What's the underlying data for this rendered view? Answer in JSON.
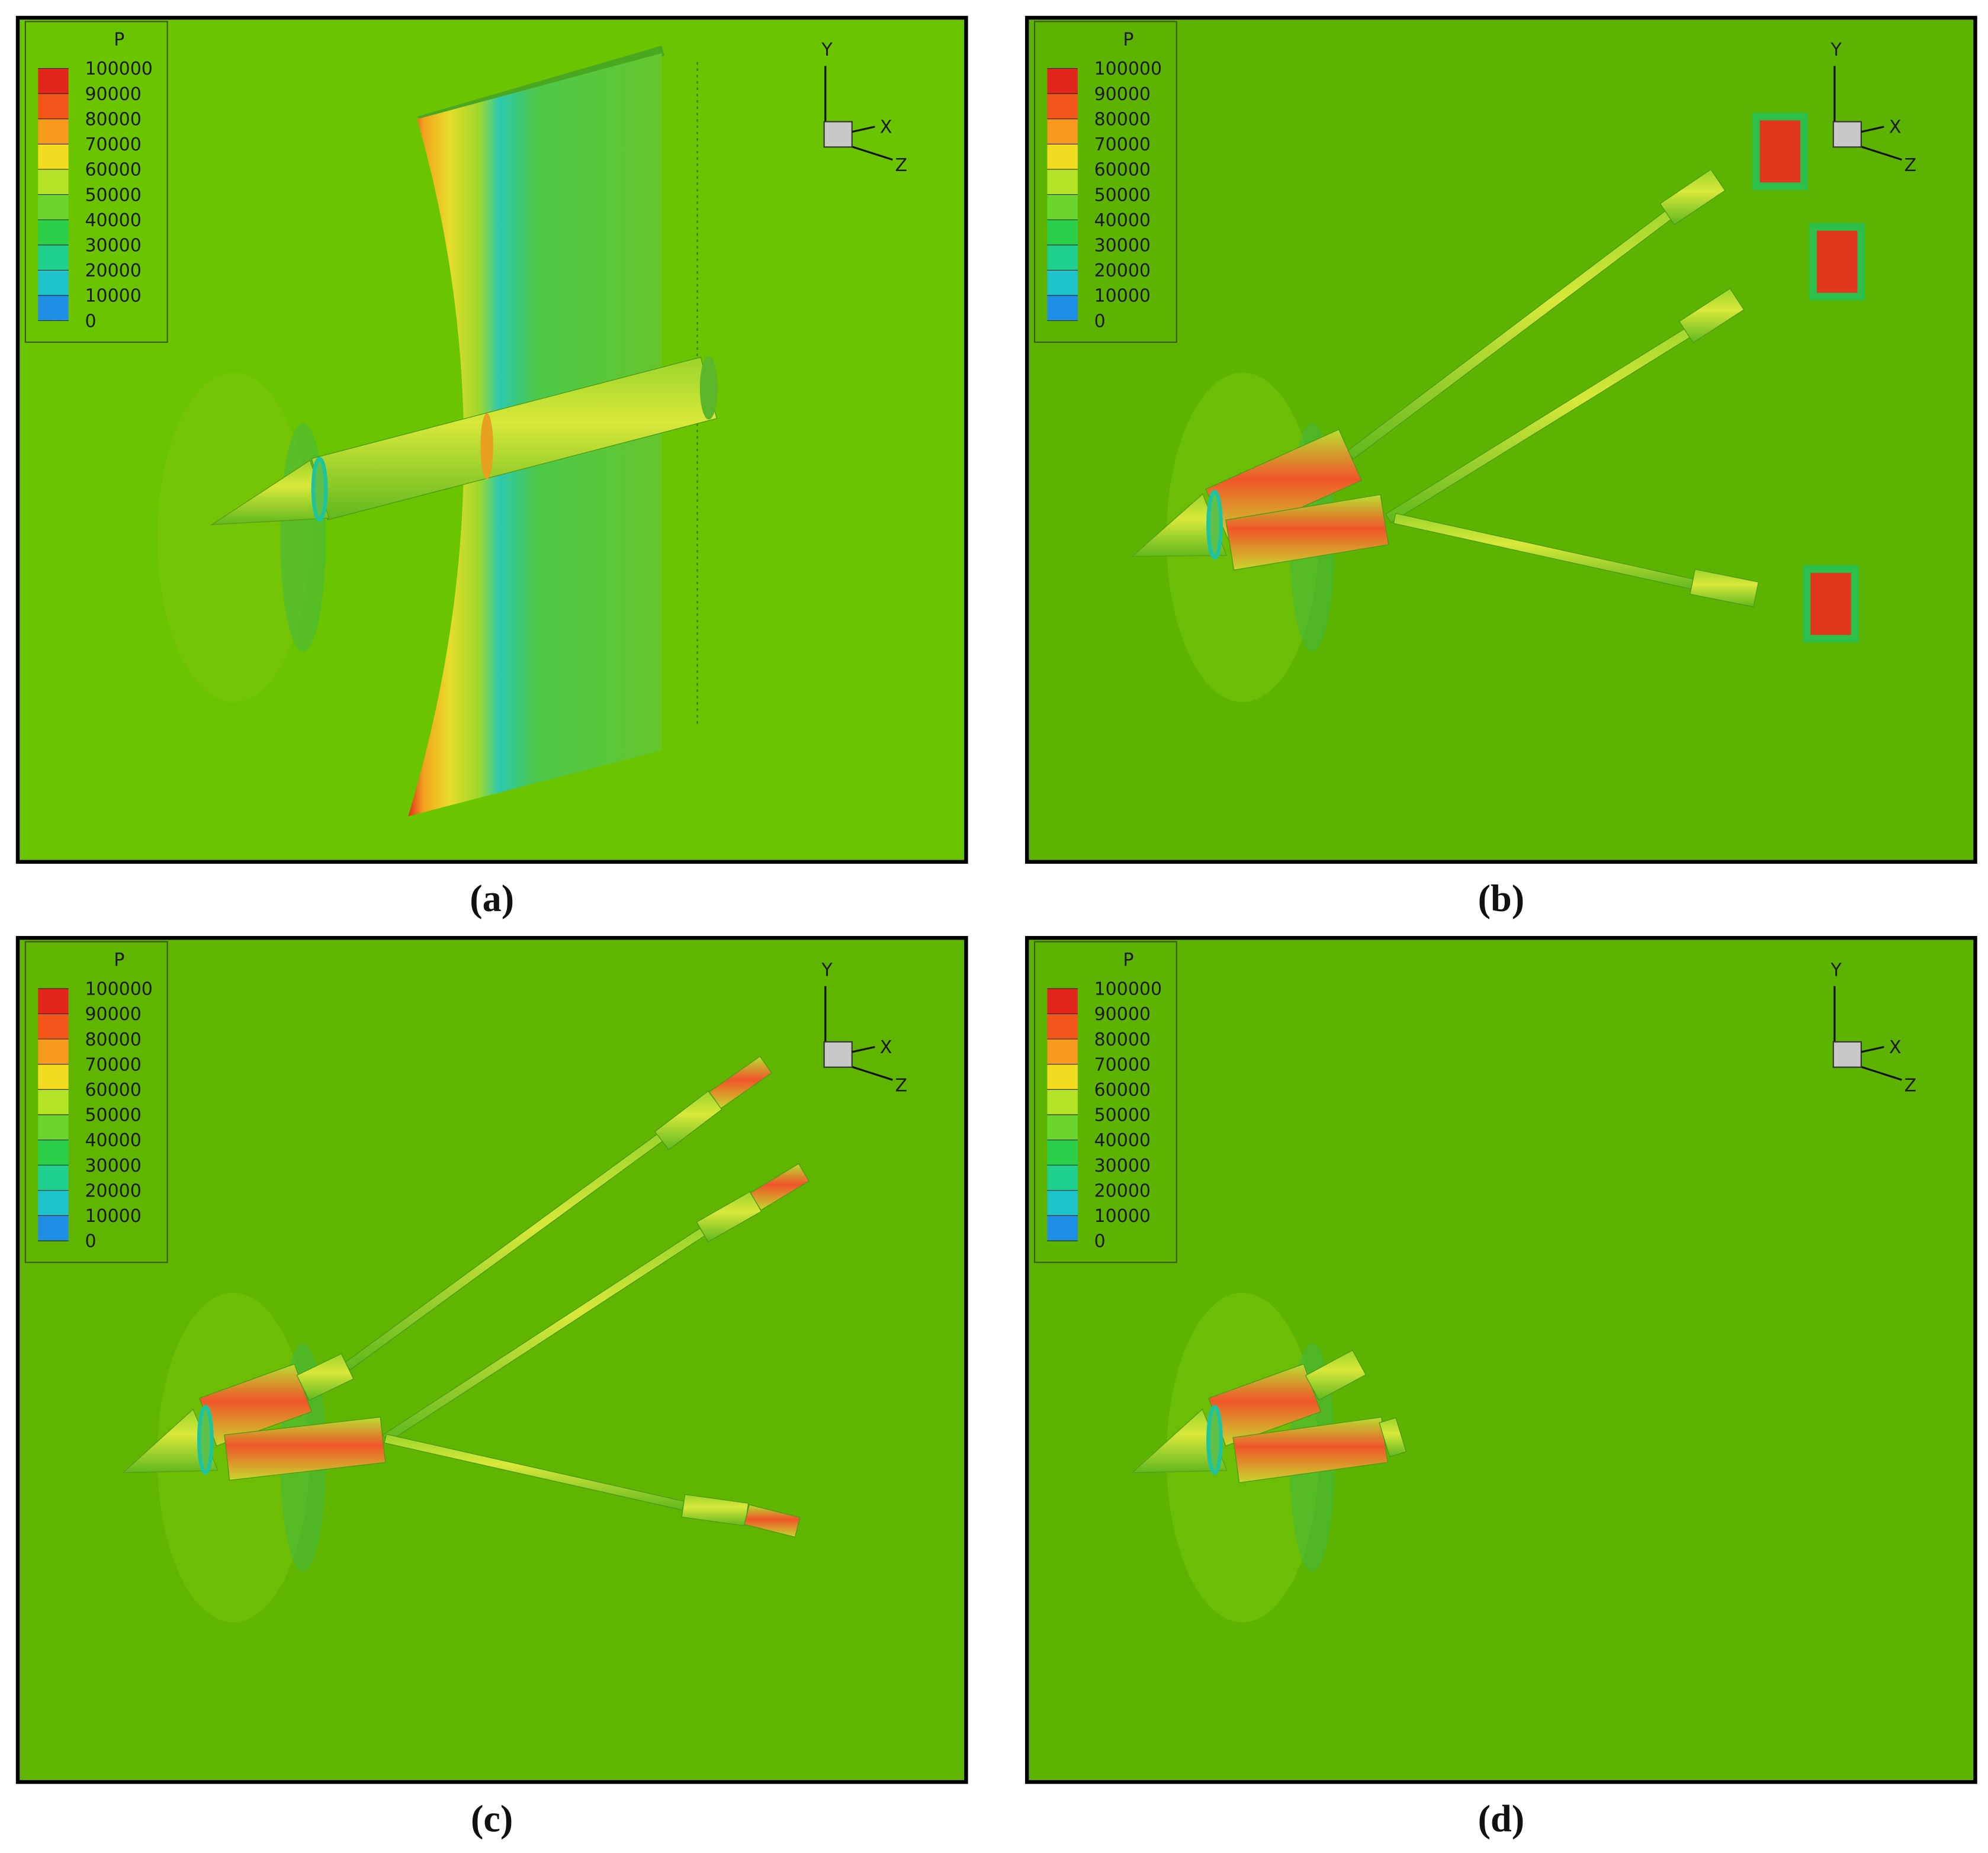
{
  "legend": {
    "title": "P",
    "levels": [
      100000,
      90000,
      80000,
      70000,
      60000,
      50000,
      40000,
      30000,
      20000,
      10000,
      0
    ],
    "colors": [
      "#e3261c",
      "#f2561a",
      "#f89a1e",
      "#f3dc1f",
      "#b5e327",
      "#6bd42d",
      "#2bcf4a",
      "#1fd08e",
      "#1ec4cc",
      "#1f8fe6",
      "#1b3ad9"
    ]
  },
  "axes": {
    "y": "Y",
    "x": "X",
    "z": "Z"
  },
  "panels": [
    {
      "caption": "(a)"
    },
    {
      "caption": "(b)"
    },
    {
      "caption": "(c)"
    },
    {
      "caption": "(d)"
    }
  ]
}
